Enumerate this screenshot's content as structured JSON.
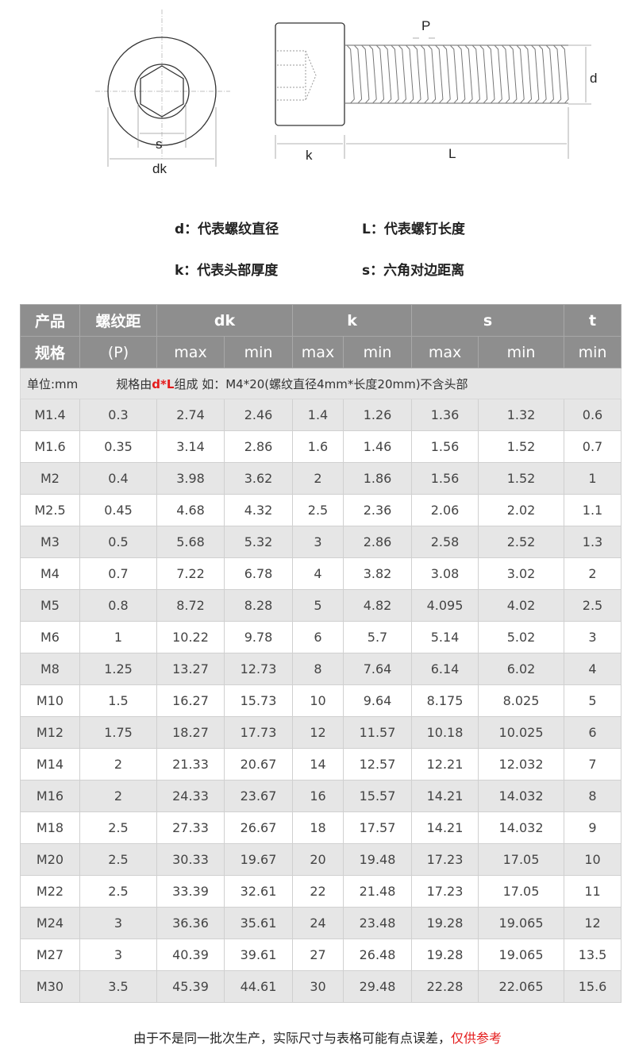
{
  "diagram": {
    "labels": {
      "s": "s",
      "dk": "dk",
      "P": "P",
      "d": "d",
      "k": "k",
      "L": "L"
    }
  },
  "legend": [
    {
      "text": "d：代表螺纹直径"
    },
    {
      "text": "L：代表螺钉长度"
    },
    {
      "text": "k：代表头部厚度"
    },
    {
      "text": "s：六角对边距离"
    }
  ],
  "table": {
    "unit": "单位:mm",
    "spec_prefix": "规格由",
    "spec_highlight": "d*L",
    "spec_suffix": "组成 如：M4*20(螺纹直径4mm*长度20mm)不含头部",
    "highlight_color": "#e41b1b",
    "header_color": "#8e8e8e",
    "headers": {
      "size_line1": "产品",
      "size_line2": "规格",
      "pitch_line1": "螺纹距",
      "pitch_line2": "(P)",
      "dk": "dk",
      "k": "k",
      "s": "s",
      "t": "t",
      "max": "max",
      "min": "min"
    },
    "rows": [
      [
        "M1.4",
        "0.3",
        "2.74",
        "2.46",
        "1.4",
        "1.26",
        "1.36",
        "1.32",
        "0.6"
      ],
      [
        "M1.6",
        "0.35",
        "3.14",
        "2.86",
        "1.6",
        "1.46",
        "1.56",
        "1.52",
        "0.7"
      ],
      [
        "M2",
        "0.4",
        "3.98",
        "3.62",
        "2",
        "1.86",
        "1.56",
        "1.52",
        "1"
      ],
      [
        "M2.5",
        "0.45",
        "4.68",
        "4.32",
        "2.5",
        "2.36",
        "2.06",
        "2.02",
        "1.1"
      ],
      [
        "M3",
        "0.5",
        "5.68",
        "5.32",
        "3",
        "2.86",
        "2.58",
        "2.52",
        "1.3"
      ],
      [
        "M4",
        "0.7",
        "7.22",
        "6.78",
        "4",
        "3.82",
        "3.08",
        "3.02",
        "2"
      ],
      [
        "M5",
        "0.8",
        "8.72",
        "8.28",
        "5",
        "4.82",
        "4.095",
        "4.02",
        "2.5"
      ],
      [
        "M6",
        "1",
        "10.22",
        "9.78",
        "6",
        "5.7",
        "5.14",
        "5.02",
        "3"
      ],
      [
        "M8",
        "1.25",
        "13.27",
        "12.73",
        "8",
        "7.64",
        "6.14",
        "6.02",
        "4"
      ],
      [
        "M10",
        "1.5",
        "16.27",
        "15.73",
        "10",
        "9.64",
        "8.175",
        "8.025",
        "5"
      ],
      [
        "M12",
        "1.75",
        "18.27",
        "17.73",
        "12",
        "11.57",
        "10.18",
        "10.025",
        "6"
      ],
      [
        "M14",
        "2",
        "21.33",
        "20.67",
        "14",
        "12.57",
        "12.21",
        "12.032",
        "7"
      ],
      [
        "M16",
        "2",
        "24.33",
        "23.67",
        "16",
        "15.57",
        "14.21",
        "14.032",
        "8"
      ],
      [
        "M18",
        "2.5",
        "27.33",
        "26.67",
        "18",
        "17.57",
        "14.21",
        "14.032",
        "9"
      ],
      [
        "M20",
        "2.5",
        "30.33",
        "19.67",
        "20",
        "19.48",
        "17.23",
        "17.05",
        "10"
      ],
      [
        "M22",
        "2.5",
        "33.39",
        "32.61",
        "22",
        "21.48",
        "17.23",
        "17.05",
        "11"
      ],
      [
        "M24",
        "3",
        "36.36",
        "35.61",
        "24",
        "23.48",
        "19.28",
        "19.065",
        "12"
      ],
      [
        "M27",
        "3",
        "40.39",
        "39.61",
        "27",
        "26.48",
        "19.28",
        "19.065",
        "13.5"
      ],
      [
        "M30",
        "3.5",
        "45.39",
        "44.61",
        "30",
        "29.48",
        "22.28",
        "22.065",
        "15.6"
      ]
    ]
  },
  "footer": {
    "text": "由于不是同一批次生产，实际尺寸与表格可能有点误差，",
    "highlight": "仅供参考"
  }
}
